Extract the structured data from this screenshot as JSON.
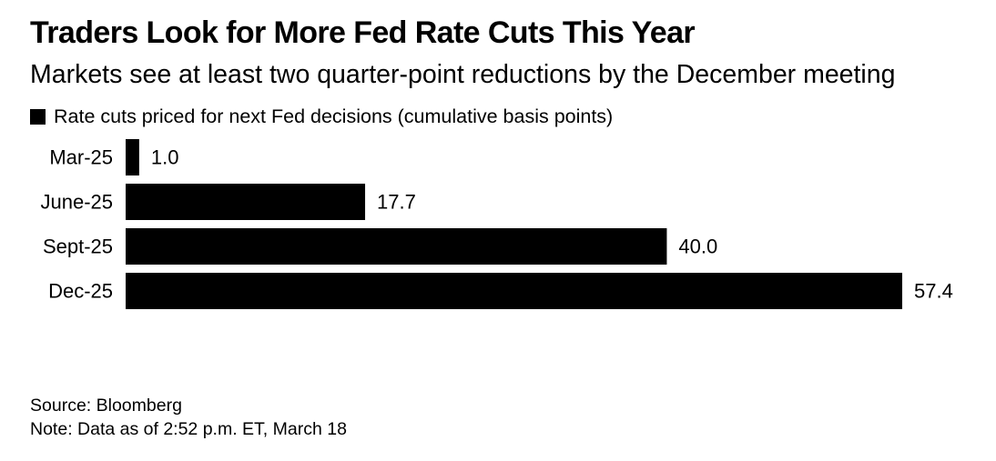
{
  "title": "Traders Look for More Fed Rate Cuts This Year",
  "subtitle": "Markets see at least two quarter-point reductions by the December meeting",
  "legend": {
    "label": "Rate cuts priced for next Fed decisions (cumulative basis points)"
  },
  "footer": {
    "source": "Source: Bloomberg",
    "note": "Note: Data as of 2:52 p.m. ET, March 18"
  },
  "colors": {
    "bar": "#000000",
    "text": "#000000",
    "background": "#ffffff"
  },
  "chart_data": {
    "type": "bar",
    "orientation": "horizontal",
    "title": "Traders Look for More Fed Rate Cuts This Year",
    "subtitle": "Markets see at least two quarter-point reductions by the December meeting",
    "categories": [
      "Mar-25",
      "June-25",
      "Sept-25",
      "Dec-25"
    ],
    "series": [
      {
        "name": "Rate cuts priced for next Fed decisions (cumulative basis points)",
        "values": [
          1.0,
          17.7,
          40.0,
          57.4
        ],
        "value_labels": [
          "1.0",
          "17.7",
          "40.0",
          "57.4"
        ]
      }
    ],
    "xlim": [
      0,
      57.4
    ],
    "grid": false,
    "legend_position": "top-left"
  }
}
